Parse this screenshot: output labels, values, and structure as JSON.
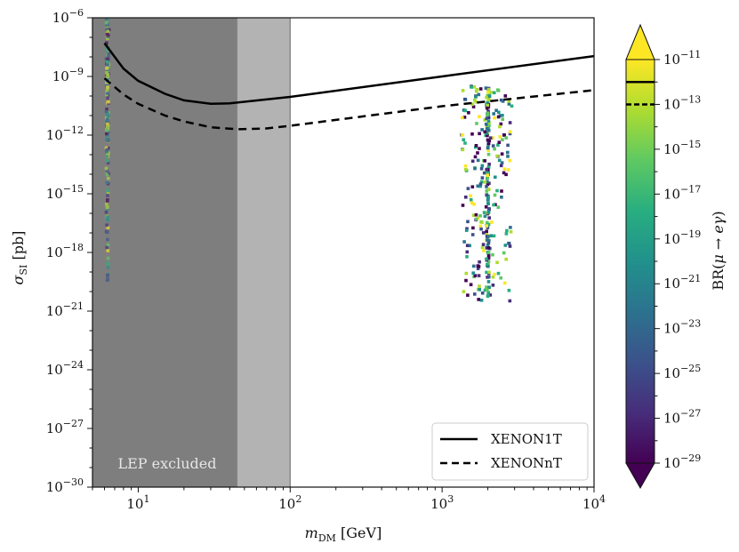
{
  "chart_data": {
    "type": "scatter",
    "x_scale": "log",
    "y_scale": "log",
    "xlim": [
      5,
      10000
    ],
    "ylim": [
      1e-30,
      1e-06
    ],
    "xlabel": "m_DM [GeV]",
    "ylabel": "σ_SI [pb]",
    "colorbar_label": "BR(μ → eγ)",
    "colorbar_range": [
      1e-29,
      1e-11
    ],
    "colorbar_extend": "both",
    "colorbar_marker_lines": [
      {
        "value": 1e-12,
        "style": "solid"
      },
      {
        "value": 1e-13,
        "style": "dashed"
      }
    ],
    "x_ticks": [
      {
        "exp": "1",
        "value": 10
      },
      {
        "exp": "2",
        "value": 100
      },
      {
        "exp": "3",
        "value": 1000
      },
      {
        "exp": "4",
        "value": 10000
      }
    ],
    "y_ticks": [
      "-30",
      "-27",
      "-24",
      "-21",
      "-18",
      "-15",
      "-12",
      "-9",
      "-6"
    ],
    "colorbar_ticks": [
      "-29",
      "-27",
      "-25",
      "-23",
      "-21",
      "-19",
      "-17",
      "-15",
      "-13",
      "-11"
    ],
    "excluded_regions": [
      {
        "x_range": [
          5,
          45
        ],
        "label": "LEP excluded",
        "shade": "dark"
      },
      {
        "x_range": [
          45,
          100
        ],
        "label": "",
        "shade": "light"
      }
    ],
    "series": [
      {
        "name": "XENON1T",
        "style": "solid",
        "color": "#000000",
        "x": [
          6,
          8,
          10,
          15,
          20,
          30,
          40,
          100,
          1000,
          10000
        ],
        "y": [
          5e-08,
          2.5e-09,
          6e-10,
          1.3e-10,
          6e-11,
          4e-11,
          4.2e-11,
          9e-11,
          1e-09,
          1.1e-08
        ]
      },
      {
        "name": "XENONnT",
        "style": "dashed",
        "color": "#000000",
        "x": [
          6,
          8,
          10,
          15,
          20,
          30,
          45,
          70,
          100,
          1000,
          10000
        ],
        "y": [
          8e-10,
          1.2e-10,
          4e-11,
          1e-11,
          5e-12,
          2.5e-12,
          2e-12,
          2.2e-12,
          3e-12,
          3e-11,
          2e-10
        ]
      }
    ],
    "scatter_clusters": [
      {
        "mass_range": [
          5.8,
          6.8
        ],
        "sigma_log_range": [
          -20.5,
          -6
        ],
        "count": 190
      },
      {
        "mass_range": [
          950,
          3800
        ],
        "sigma_log_range": [
          -22.5,
          -9.5
        ],
        "count": 330
      }
    ]
  }
}
